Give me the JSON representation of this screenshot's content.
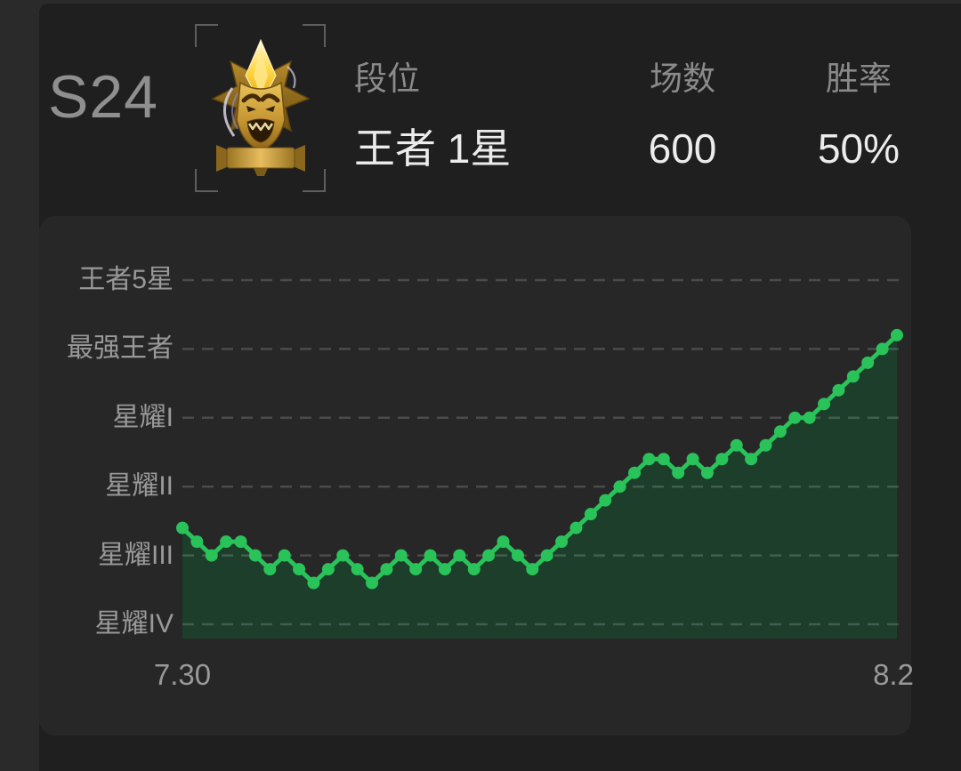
{
  "page": {
    "bg_color": "#2a2a2a",
    "card_color": "#1f1f1f",
    "panel_color": "#272727"
  },
  "header": {
    "season": "S24",
    "badge_icon": "king-rank-emblem",
    "stats": [
      {
        "label": "段位",
        "value": "王者 1星"
      },
      {
        "label": "场数",
        "value": "600"
      },
      {
        "label": "胜率",
        "value": "50%"
      }
    ]
  },
  "chart_data": {
    "type": "area",
    "title": "rank star progression",
    "x_ticks": [
      "7.30",
      "8.2"
    ],
    "y_ticks": [
      {
        "label": "王者5星",
        "stars": 25
      },
      {
        "label": "最强王者",
        "stars": 20
      },
      {
        "label": "星耀I",
        "stars": 15
      },
      {
        "label": "星耀II",
        "stars": 10
      },
      {
        "label": "星耀III",
        "stars": 5
      },
      {
        "label": "星耀IV",
        "stars": 0
      }
    ],
    "unit": "stars above 星耀IV (5 stars per tier)",
    "values": [
      7,
      6,
      5,
      6,
      6,
      5,
      4,
      5,
      4,
      3,
      4,
      5,
      4,
      3,
      4,
      5,
      4,
      5,
      4,
      5,
      4,
      5,
      6,
      5,
      4,
      5,
      6,
      7,
      8,
      9,
      10,
      11,
      12,
      12,
      11,
      12,
      11,
      12,
      13,
      12,
      13,
      14,
      15,
      15,
      16,
      17,
      18,
      19,
      20,
      21
    ],
    "ylim": [
      0,
      27
    ],
    "grid": true,
    "legend": "none",
    "line_color": "#29c35a",
    "fill_color": "#1c3e2b",
    "grid_color": "rgba(255,255,255,0.17)"
  }
}
